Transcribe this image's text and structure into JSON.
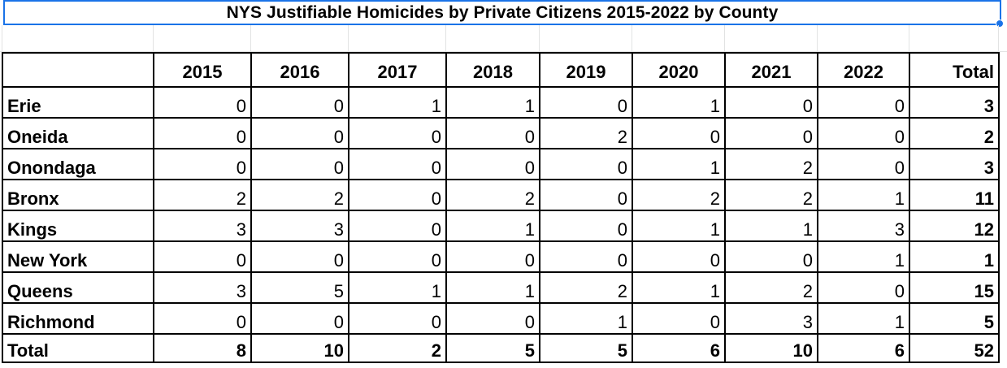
{
  "sheet": {
    "title": "NYS Justifiable Homicides by Private Citizens 2015-2022 by County"
  },
  "table": {
    "headers": [
      "",
      "2015",
      "2016",
      "2017",
      "2018",
      "2019",
      "2020",
      "2021",
      "2022",
      "Total"
    ],
    "rows": [
      {
        "county": "Erie",
        "values": [
          "0",
          "0",
          "1",
          "1",
          "0",
          "1",
          "0",
          "0"
        ],
        "total": "3"
      },
      {
        "county": "Oneida",
        "values": [
          "0",
          "0",
          "0",
          "0",
          "2",
          "0",
          "0",
          "0"
        ],
        "total": "2"
      },
      {
        "county": "Onondaga",
        "values": [
          "0",
          "0",
          "0",
          "0",
          "0",
          "1",
          "2",
          "0"
        ],
        "total": "3"
      },
      {
        "county": "Bronx",
        "values": [
          "2",
          "2",
          "0",
          "2",
          "0",
          "2",
          "2",
          "1"
        ],
        "total": "11"
      },
      {
        "county": "Kings",
        "values": [
          "3",
          "3",
          "0",
          "1",
          "0",
          "1",
          "1",
          "3"
        ],
        "total": "12"
      },
      {
        "county": "New York",
        "values": [
          "0",
          "0",
          "0",
          "0",
          "0",
          "0",
          "0",
          "1"
        ],
        "total": "1"
      },
      {
        "county": "Queens",
        "values": [
          "3",
          "5",
          "1",
          "1",
          "2",
          "1",
          "2",
          "0"
        ],
        "total": "15"
      },
      {
        "county": "Richmond",
        "values": [
          "0",
          "0",
          "0",
          "0",
          "1",
          "0",
          "3",
          "1"
        ],
        "total": "5"
      }
    ],
    "total_row": {
      "label": "Total",
      "values": [
        "8",
        "10",
        "2",
        "5",
        "5",
        "6",
        "10",
        "6"
      ],
      "total": "52"
    }
  }
}
